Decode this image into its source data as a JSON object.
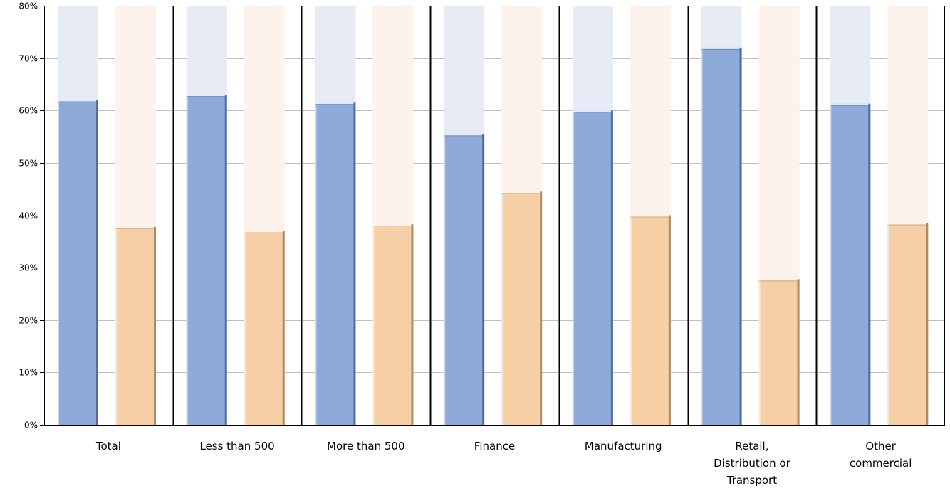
{
  "chart_data": {
    "type": "bar",
    "categories": [
      [
        "Total"
      ],
      [
        "Less than 500"
      ],
      [
        "More than 500"
      ],
      [
        "Finance"
      ],
      [
        "Manufacturing"
      ],
      [
        "Retail,",
        "Distribution or",
        "Transport"
      ],
      [
        "Other",
        "commercial"
      ]
    ],
    "series": [
      {
        "values": [
          62,
          63,
          61.5,
          55.5,
          60,
          72,
          61.3
        ]
      },
      {
        "values": [
          37.8,
          37,
          38.3,
          44.5,
          40,
          27.8,
          38.5
        ]
      }
    ],
    "ylim": [
      0,
      80
    ],
    "yticks": [
      0,
      10,
      20,
      30,
      40,
      50,
      60,
      70,
      80
    ],
    "ytick_labels": [
      "0%",
      "10%",
      "20%",
      "30%",
      "40%",
      "50%",
      "60%",
      "70%",
      "80%"
    ],
    "grid": true,
    "legend": "none"
  },
  "colors": {
    "series_fill": [
      "#8eaad9",
      "#f6cfa6"
    ],
    "series_track": [
      "#e6ebf6",
      "#fdf2ec"
    ],
    "series_highlight": [
      "#ffffff",
      "#ffffff"
    ],
    "series_shadow": [
      "#4b628f",
      "#9c8060"
    ],
    "grid": "#c0c0c0",
    "axis": "#000000"
  }
}
